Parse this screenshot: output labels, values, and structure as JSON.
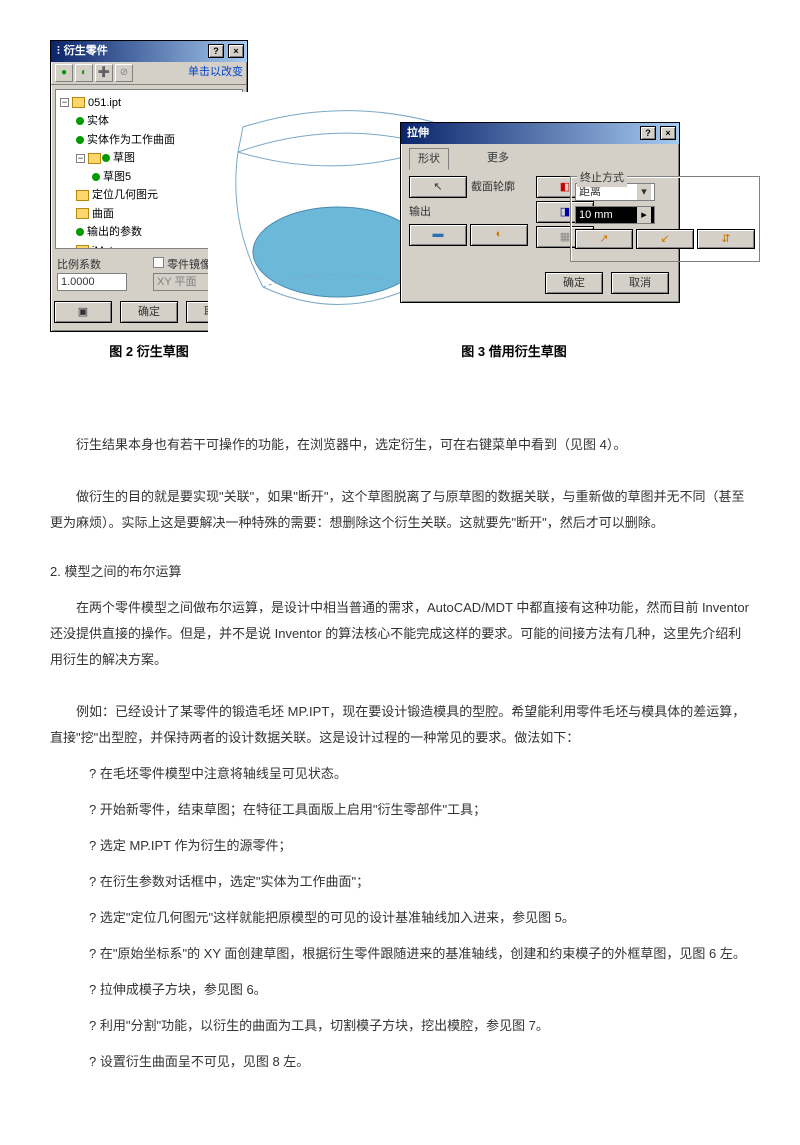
{
  "figures": {
    "fig2": {
      "caption": "图 2 衍生草图",
      "win_title": "衍生零件",
      "hint": "单击以改变",
      "tree": [
        {
          "exp": "-",
          "ico": "folder",
          "label": "051.ipt",
          "indent": 0
        },
        {
          "exp": "",
          "ico": "dot",
          "dot_color": "#009900",
          "label": "实体",
          "indent": 1
        },
        {
          "exp": "",
          "ico": "dot",
          "dot_color": "#009900",
          "label": "实体作为工作曲面",
          "indent": 1
        },
        {
          "exp": "-",
          "ico": "folder",
          "label": "草图",
          "indent": 1,
          "folder_color": "#fcd76e"
        },
        {
          "exp": "",
          "ico": "dot",
          "dot_color": "#009900",
          "label": "草图5",
          "indent": 2
        },
        {
          "exp": "",
          "ico": "folder",
          "label": "定位几何图元",
          "indent": 1
        },
        {
          "exp": "",
          "ico": "folder",
          "label": "曲面",
          "indent": 1
        },
        {
          "exp": "",
          "ico": "dot",
          "dot_color": "#009900",
          "label": "输出的参数",
          "indent": 1
        },
        {
          "exp": "",
          "ico": "folder",
          "label": "iMate",
          "indent": 1
        }
      ],
      "scale_label": "比例系数",
      "scale_value": "1.0000",
      "mirror_label": "零件镜像",
      "plane_value": "XY 平面",
      "ok": "确定",
      "cancel": "取消"
    },
    "fig3": {
      "caption": "图 3 借用衍生草图",
      "win_title": "拉伸",
      "tab_shape": "形状",
      "tab_more": "更多",
      "profile_label": "截面轮廓",
      "output_label": "输出",
      "end_group": "终止方式",
      "end_option": "距离",
      "distance": "10 mm",
      "ok": "确定",
      "cancel": "取消",
      "shape_fill": "#6cb8d8",
      "shape_edge": "#7aa8c8"
    }
  },
  "body": {
    "p1": "衍生结果本身也有若干可操作的功能，在浏览器中，选定衍生，可在右键菜单中看到（见图 4）。",
    "p2": "做衍生的目的就是要实现\"关联\"，如果\"断开\"，这个草图脱离了与原草图的数据关联，与重新做的草图并无不同（甚至更为麻烦）。实际上这是要解决一种特殊的需要：想删除这个衍生关联。这就要先\"断开\"，然后才可以删除。",
    "h2": "2.  模型之间的布尔运算",
    "p3": "在两个零件模型之间做布尔运算，是设计中相当普通的需求，AutoCAD/MDT 中都直接有这种功能，然而目前 Inventor 还没提供直接的操作。但是，并不是说 Inventor 的算法核心不能完成这样的要求。可能的间接方法有几种，这里先介绍利用衍生的解决方案。",
    "p4": "例如：已经设计了某零件的锻造毛坯 MP.IPT，现在要设计锻造模具的型腔。希望能利用零件毛坯与模具体的差运算，直接\"挖\"出型腔，并保持两者的设计数据关联。这是设计过程的一种常见的要求。做法如下：",
    "steps": [
      "? 在毛坯零件模型中注意将轴线呈可见状态。",
      "? 开始新零件，结束草图；在特征工具面版上启用\"衍生零部件\"工具；",
      "? 选定 MP.IPT 作为衍生的源零件；",
      "? 在衍生参数对话框中，选定\"实体为工作曲面\"；",
      "? 选定\"定位几何图元\"这样就能把原模型的可见的设计基准轴线加入进来，参见图 5。",
      "? 在\"原始坐标系\"的 XY 面创建草图，根据衍生零件跟随进来的基准轴线，创建和约束模子的外框草图，见图 6 左。",
      "? 拉伸成模子方块，参见图 6。",
      "? 利用\"分割\"功能，以衍生的曲面为工具，切割模子方块，挖出模腔，参见图 7。",
      "? 设置衍生曲面呈不可见，见图 8 左。"
    ]
  }
}
